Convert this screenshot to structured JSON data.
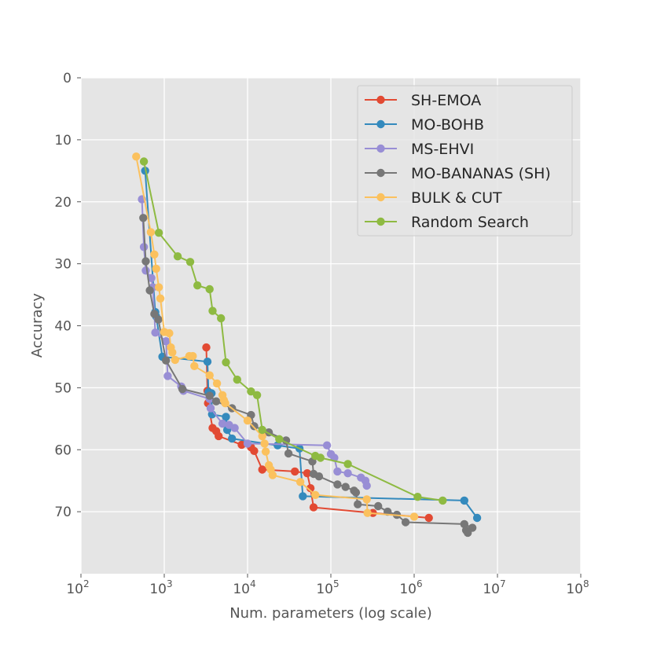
{
  "chart_data": {
    "type": "line",
    "title": "",
    "xlabel": "Num. parameters (log scale)",
    "ylabel": "Accuracy",
    "xscale": "log",
    "xlim": [
      100,
      100000000
    ],
    "ylim": [
      0,
      80
    ],
    "y_inverted": true,
    "yticks": [
      0,
      10,
      20,
      30,
      40,
      50,
      60,
      70
    ],
    "xticks": [
      {
        "base": "10",
        "exp": "2",
        "value": 100
      },
      {
        "base": "10",
        "exp": "3",
        "value": 1000
      },
      {
        "base": "10",
        "exp": "4",
        "value": 10000
      },
      {
        "base": "10",
        "exp": "5",
        "value": 100000
      },
      {
        "base": "10",
        "exp": "6",
        "value": 1000000
      },
      {
        "base": "10",
        "exp": "7",
        "value": 10000000
      },
      {
        "base": "10",
        "exp": "8",
        "value": 100000000
      }
    ],
    "grid": true,
    "background": "#e5e5e5",
    "legend_position": "top-right",
    "series": [
      {
        "name": "SH-EMOA",
        "color": "#e24a33",
        "points": [
          [
            3200,
            43.5
          ],
          [
            3300,
            50.5
          ],
          [
            3350,
            52.5
          ],
          [
            3800,
            56.5
          ],
          [
            4200,
            57.0
          ],
          [
            4500,
            57.8
          ],
          [
            8500,
            59.2
          ],
          [
            11000,
            59.6
          ],
          [
            12000,
            60.2
          ],
          [
            15000,
            63.2
          ],
          [
            37000,
            63.5
          ],
          [
            52000,
            63.8
          ],
          [
            57000,
            66.2
          ],
          [
            62000,
            69.3
          ],
          [
            320000,
            70.2
          ],
          [
            1500000,
            71.0
          ]
        ]
      },
      {
        "name": "MO-BOHB",
        "color": "#348abd",
        "points": [
          [
            590,
            15.0
          ],
          [
            780,
            37.8
          ],
          [
            800,
            38.5
          ],
          [
            950,
            45.0
          ],
          [
            3300,
            45.8
          ],
          [
            3400,
            50.7
          ],
          [
            3700,
            50.9
          ],
          [
            3750,
            54.3
          ],
          [
            5500,
            54.7
          ],
          [
            5700,
            56.8
          ],
          [
            6500,
            58.2
          ],
          [
            23000,
            59.3
          ],
          [
            42000,
            59.8
          ],
          [
            46000,
            67.5
          ],
          [
            4000000,
            68.2
          ],
          [
            5700000,
            71.0
          ]
        ]
      },
      {
        "name": "MS-EHVI",
        "color": "#988ed5",
        "points": [
          [
            540,
            19.6
          ],
          [
            570,
            27.3
          ],
          [
            600,
            31.1
          ],
          [
            700,
            32.3
          ],
          [
            730,
            33.8
          ],
          [
            780,
            41.1
          ],
          [
            1050,
            42.5
          ],
          [
            1100,
            48.1
          ],
          [
            1600,
            49.8
          ],
          [
            1700,
            50.5
          ],
          [
            3500,
            51.8
          ],
          [
            3600,
            53.3
          ],
          [
            5000,
            55.8
          ],
          [
            6000,
            56.0
          ],
          [
            7000,
            56.5
          ],
          [
            10000,
            59.0
          ],
          [
            90000,
            59.3
          ],
          [
            100000,
            60.7
          ],
          [
            110000,
            61.3
          ],
          [
            120000,
            63.5
          ],
          [
            160000,
            63.8
          ],
          [
            230000,
            64.5
          ],
          [
            260000,
            65.0
          ],
          [
            270000,
            65.8
          ]
        ]
      },
      {
        "name": "MO-BANANAS (SH)",
        "color": "#777777",
        "points": [
          [
            560,
            22.6
          ],
          [
            600,
            29.6
          ],
          [
            670,
            34.3
          ],
          [
            760,
            38.1
          ],
          [
            850,
            39.0
          ],
          [
            1050,
            45.6
          ],
          [
            1650,
            50.2
          ],
          [
            3500,
            51.3
          ],
          [
            4200,
            52.2
          ],
          [
            6500,
            53.3
          ],
          [
            11000,
            54.4
          ],
          [
            12000,
            56.2
          ],
          [
            18000,
            57.2
          ],
          [
            29000,
            58.5
          ],
          [
            31000,
            60.6
          ],
          [
            60000,
            61.9
          ],
          [
            62000,
            63.9
          ],
          [
            72000,
            64.3
          ],
          [
            120000,
            65.6
          ],
          [
            150000,
            66.0
          ],
          [
            190000,
            66.6
          ],
          [
            200000,
            66.9
          ],
          [
            210000,
            68.8
          ],
          [
            370000,
            69.1
          ],
          [
            480000,
            70.0
          ],
          [
            620000,
            70.5
          ],
          [
            790000,
            71.7
          ],
          [
            4000000,
            72.0
          ],
          [
            5000000,
            72.6
          ],
          [
            4200000,
            73.0
          ],
          [
            4400000,
            73.4
          ]
        ]
      },
      {
        "name": "BULK & CUT",
        "color": "#fbc15e",
        "points": [
          [
            460,
            12.7
          ],
          [
            690,
            24.9
          ],
          [
            760,
            28.5
          ],
          [
            800,
            30.8
          ],
          [
            860,
            33.8
          ],
          [
            900,
            35.6
          ],
          [
            1000,
            41.0
          ],
          [
            1150,
            41.2
          ],
          [
            1200,
            43.5
          ],
          [
            1250,
            44.3
          ],
          [
            1350,
            45.5
          ],
          [
            2000,
            44.9
          ],
          [
            2200,
            44.9
          ],
          [
            2300,
            46.5
          ],
          [
            3500,
            48.0
          ],
          [
            4300,
            49.3
          ],
          [
            5000,
            51.2
          ],
          [
            5200,
            52.0
          ],
          [
            5400,
            52.5
          ],
          [
            10000,
            55.3
          ],
          [
            15000,
            57.8
          ],
          [
            16000,
            59.0
          ],
          [
            16500,
            60.3
          ],
          [
            18000,
            62.5
          ],
          [
            19000,
            63.2
          ],
          [
            20000,
            64.1
          ],
          [
            43000,
            65.2
          ],
          [
            65000,
            67.3
          ],
          [
            270000,
            68.0
          ],
          [
            275000,
            70.2
          ],
          [
            1000000,
            70.8
          ]
        ]
      },
      {
        "name": "Random Search",
        "color": "#8eba42",
        "points": [
          [
            570,
            13.5
          ],
          [
            860,
            25.0
          ],
          [
            1450,
            28.8
          ],
          [
            2050,
            29.7
          ],
          [
            2500,
            33.5
          ],
          [
            3500,
            34.1
          ],
          [
            3800,
            37.6
          ],
          [
            4800,
            38.8
          ],
          [
            5500,
            45.9
          ],
          [
            7500,
            48.7
          ],
          [
            11000,
            50.6
          ],
          [
            13000,
            51.2
          ],
          [
            15000,
            56.8
          ],
          [
            24000,
            58.3
          ],
          [
            65000,
            61.0
          ],
          [
            75000,
            61.3
          ],
          [
            160000,
            62.3
          ],
          [
            1100000,
            67.6
          ],
          [
            2200000,
            68.2
          ]
        ]
      }
    ]
  }
}
